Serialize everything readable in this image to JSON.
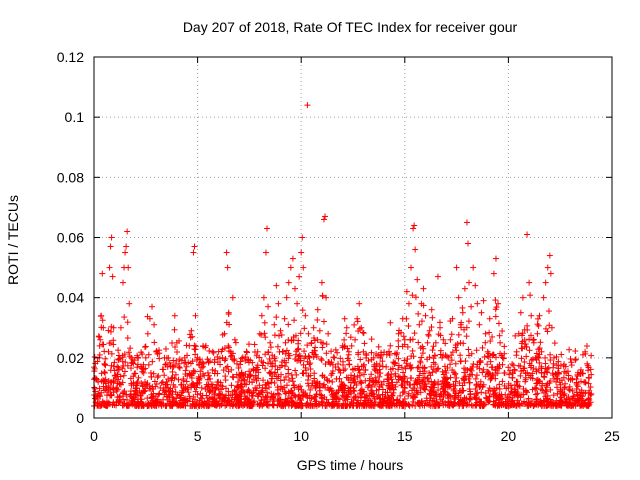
{
  "chart_data": {
    "type": "scatter",
    "title": "Day 207 of 2018, Rate Of TEC Index for receiver gour",
    "xlabel": "GPS time / hours",
    "ylabel": "ROTI / TECUs",
    "xlim": [
      0,
      25
    ],
    "ylim": [
      0,
      0.12
    ],
    "xticks": [
      0,
      5,
      10,
      15,
      20,
      25
    ],
    "xtick_labels": [
      "0",
      "5",
      "10",
      "15",
      "20",
      "25"
    ],
    "yticks": [
      0,
      0.02,
      0.04,
      0.06,
      0.08,
      0.1,
      0.12
    ],
    "ytick_labels": [
      "0",
      "0.02",
      "0.04",
      "0.06",
      "0.08",
      "0.1",
      "0.12"
    ],
    "grid": true,
    "marker": "+",
    "color": "#ff0000",
    "series": [
      {
        "name": "ROTI",
        "points": [
          [
            0.1,
            0.007
          ],
          [
            0.2,
            0.012
          ],
          [
            0.25,
            0.02
          ],
          [
            0.3,
            0.026
          ],
          [
            0.35,
            0.034
          ],
          [
            0.4,
            0.048
          ],
          [
            0.45,
            0.03
          ],
          [
            0.5,
            0.018
          ],
          [
            0.6,
            0.01
          ],
          [
            0.7,
            0.022
          ],
          [
            0.75,
            0.05
          ],
          [
            0.8,
            0.057
          ],
          [
            0.85,
            0.06
          ],
          [
            0.9,
            0.047
          ],
          [
            0.95,
            0.03
          ],
          [
            1.0,
            0.014
          ],
          [
            1.1,
            0.009
          ],
          [
            1.2,
            0.016
          ],
          [
            1.3,
            0.03
          ],
          [
            1.4,
            0.045
          ],
          [
            1.45,
            0.05
          ],
          [
            1.5,
            0.055
          ],
          [
            1.55,
            0.057
          ],
          [
            1.6,
            0.062
          ],
          [
            1.65,
            0.05
          ],
          [
            1.7,
            0.038
          ],
          [
            1.8,
            0.02
          ],
          [
            1.9,
            0.011
          ],
          [
            2.0,
            0.008
          ],
          [
            2.1,
            0.012
          ],
          [
            2.2,
            0.009
          ],
          [
            2.4,
            0.015
          ],
          [
            2.5,
            0.02
          ],
          [
            2.6,
            0.028
          ],
          [
            2.7,
            0.033
          ],
          [
            2.8,
            0.037
          ],
          [
            2.9,
            0.031
          ],
          [
            3.0,
            0.022
          ],
          [
            3.1,
            0.014
          ],
          [
            3.2,
            0.01
          ],
          [
            3.4,
            0.02
          ],
          [
            3.5,
            0.012
          ],
          [
            3.6,
            0.009
          ],
          [
            3.8,
            0.017
          ],
          [
            3.9,
            0.034
          ],
          [
            4.0,
            0.025
          ],
          [
            4.1,
            0.018
          ],
          [
            4.2,
            0.011
          ],
          [
            4.3,
            0.009
          ],
          [
            4.5,
            0.014
          ],
          [
            4.6,
            0.024
          ],
          [
            4.7,
            0.029
          ],
          [
            4.8,
            0.055
          ],
          [
            4.85,
            0.057
          ],
          [
            4.9,
            0.034
          ],
          [
            5.0,
            0.02
          ],
          [
            5.1,
            0.013
          ],
          [
            5.2,
            0.01
          ],
          [
            5.3,
            0.018
          ],
          [
            5.4,
            0.024
          ],
          [
            5.5,
            0.015
          ],
          [
            5.7,
            0.01
          ],
          [
            5.8,
            0.008
          ],
          [
            6.0,
            0.012
          ],
          [
            6.2,
            0.02
          ],
          [
            6.3,
            0.028
          ],
          [
            6.4,
            0.055
          ],
          [
            6.45,
            0.05
          ],
          [
            6.5,
            0.035
          ],
          [
            6.6,
            0.022
          ],
          [
            6.7,
            0.04
          ],
          [
            6.8,
            0.026
          ],
          [
            6.9,
            0.018
          ],
          [
            7.0,
            0.01
          ],
          [
            7.2,
            0.014
          ],
          [
            7.3,
            0.019
          ],
          [
            7.5,
            0.012
          ],
          [
            7.7,
            0.009
          ],
          [
            7.8,
            0.016
          ],
          [
            7.9,
            0.022
          ],
          [
            8.0,
            0.028
          ],
          [
            8.1,
            0.034
          ],
          [
            8.2,
            0.04
          ],
          [
            8.3,
            0.055
          ],
          [
            8.35,
            0.063
          ],
          [
            8.4,
            0.037
          ],
          [
            8.5,
            0.025
          ],
          [
            8.6,
            0.018
          ],
          [
            8.7,
            0.031
          ],
          [
            8.8,
            0.044
          ],
          [
            8.9,
            0.038
          ],
          [
            9.0,
            0.029
          ],
          [
            9.1,
            0.022
          ],
          [
            9.2,
            0.033
          ],
          [
            9.3,
            0.04
          ],
          [
            9.4,
            0.045
          ],
          [
            9.5,
            0.05
          ],
          [
            9.6,
            0.053
          ],
          [
            9.7,
            0.043
          ],
          [
            9.8,
            0.038
          ],
          [
            9.9,
            0.047
          ],
          [
            10.0,
            0.055
          ],
          [
            10.05,
            0.06
          ],
          [
            10.1,
            0.05
          ],
          [
            10.2,
            0.034
          ],
          [
            10.3,
            0.104
          ],
          [
            10.35,
            0.028
          ],
          [
            10.4,
            0.02
          ],
          [
            10.5,
            0.025
          ],
          [
            10.6,
            0.03
          ],
          [
            10.7,
            0.021
          ],
          [
            10.8,
            0.036
          ],
          [
            10.9,
            0.029
          ],
          [
            11.0,
            0.045
          ],
          [
            11.1,
            0.066
          ],
          [
            11.15,
            0.067
          ],
          [
            11.2,
            0.04
          ],
          [
            11.3,
            0.028
          ],
          [
            11.4,
            0.018
          ],
          [
            11.5,
            0.012
          ],
          [
            11.6,
            0.02
          ],
          [
            11.7,
            0.013
          ],
          [
            11.8,
            0.009
          ],
          [
            11.9,
            0.015
          ],
          [
            12.0,
            0.024
          ],
          [
            12.1,
            0.033
          ],
          [
            12.2,
            0.03
          ],
          [
            12.3,
            0.022
          ],
          [
            12.5,
            0.016
          ],
          [
            12.6,
            0.026
          ],
          [
            12.7,
            0.033
          ],
          [
            12.8,
            0.038
          ],
          [
            12.9,
            0.03
          ],
          [
            13.0,
            0.022
          ],
          [
            13.1,
            0.016
          ],
          [
            13.3,
            0.011
          ],
          [
            13.5,
            0.02
          ],
          [
            13.7,
            0.015
          ],
          [
            13.9,
            0.011
          ],
          [
            14.1,
            0.017
          ],
          [
            14.3,
            0.024
          ],
          [
            14.5,
            0.018
          ],
          [
            14.7,
            0.028
          ],
          [
            14.9,
            0.033
          ],
          [
            15.0,
            0.026
          ],
          [
            15.1,
            0.042
          ],
          [
            15.2,
            0.038
          ],
          [
            15.3,
            0.05
          ],
          [
            15.4,
            0.063
          ],
          [
            15.45,
            0.064
          ],
          [
            15.5,
            0.056
          ],
          [
            15.6,
            0.046
          ],
          [
            15.7,
            0.031
          ],
          [
            15.8,
            0.038
          ],
          [
            15.9,
            0.043
          ],
          [
            16.0,
            0.034
          ],
          [
            16.1,
            0.025
          ],
          [
            16.2,
            0.029
          ],
          [
            16.3,
            0.036
          ],
          [
            16.5,
            0.025
          ],
          [
            16.6,
            0.047
          ],
          [
            16.7,
            0.03
          ],
          [
            16.8,
            0.02
          ],
          [
            17.0,
            0.015
          ],
          [
            17.1,
            0.02
          ],
          [
            17.2,
            0.026
          ],
          [
            17.3,
            0.033
          ],
          [
            17.5,
            0.05
          ],
          [
            17.6,
            0.04
          ],
          [
            17.7,
            0.031
          ],
          [
            17.8,
            0.035
          ],
          [
            17.9,
            0.043
          ],
          [
            18.0,
            0.065
          ],
          [
            18.05,
            0.058
          ],
          [
            18.1,
            0.045
          ],
          [
            18.2,
            0.037
          ],
          [
            18.3,
            0.05
          ],
          [
            18.4,
            0.044
          ],
          [
            18.5,
            0.038
          ],
          [
            18.6,
            0.031
          ],
          [
            18.7,
            0.035
          ],
          [
            18.8,
            0.039
          ],
          [
            18.9,
            0.028
          ],
          [
            19.0,
            0.022
          ],
          [
            19.1,
            0.033
          ],
          [
            19.3,
            0.048
          ],
          [
            19.4,
            0.053
          ],
          [
            19.5,
            0.038
          ],
          [
            19.6,
            0.025
          ],
          [
            19.8,
            0.015
          ],
          [
            20.0,
            0.01
          ],
          [
            20.2,
            0.015
          ],
          [
            20.4,
            0.022
          ],
          [
            20.5,
            0.028
          ],
          [
            20.6,
            0.035
          ],
          [
            20.7,
            0.04
          ],
          [
            20.9,
            0.061
          ],
          [
            21.0,
            0.045
          ],
          [
            21.1,
            0.034
          ],
          [
            21.2,
            0.026
          ],
          [
            21.3,
            0.02
          ],
          [
            21.4,
            0.028
          ],
          [
            21.5,
            0.034
          ],
          [
            21.6,
            0.022
          ],
          [
            21.7,
            0.04
          ],
          [
            21.8,
            0.045
          ],
          [
            21.9,
            0.05
          ],
          [
            22.0,
            0.054
          ],
          [
            22.05,
            0.048
          ],
          [
            22.1,
            0.03
          ],
          [
            22.2,
            0.02
          ],
          [
            22.3,
            0.012
          ],
          [
            22.5,
            0.008
          ],
          [
            22.7,
            0.01
          ],
          [
            22.9,
            0.013
          ],
          [
            23.1,
            0.009
          ],
          [
            23.3,
            0.011
          ],
          [
            23.5,
            0.016
          ],
          [
            23.6,
            0.021
          ],
          [
            23.7,
            0.022
          ],
          [
            23.8,
            0.018
          ],
          [
            23.9,
            0.006
          ],
          [
            24.0,
            0.008
          ]
        ]
      }
    ]
  }
}
